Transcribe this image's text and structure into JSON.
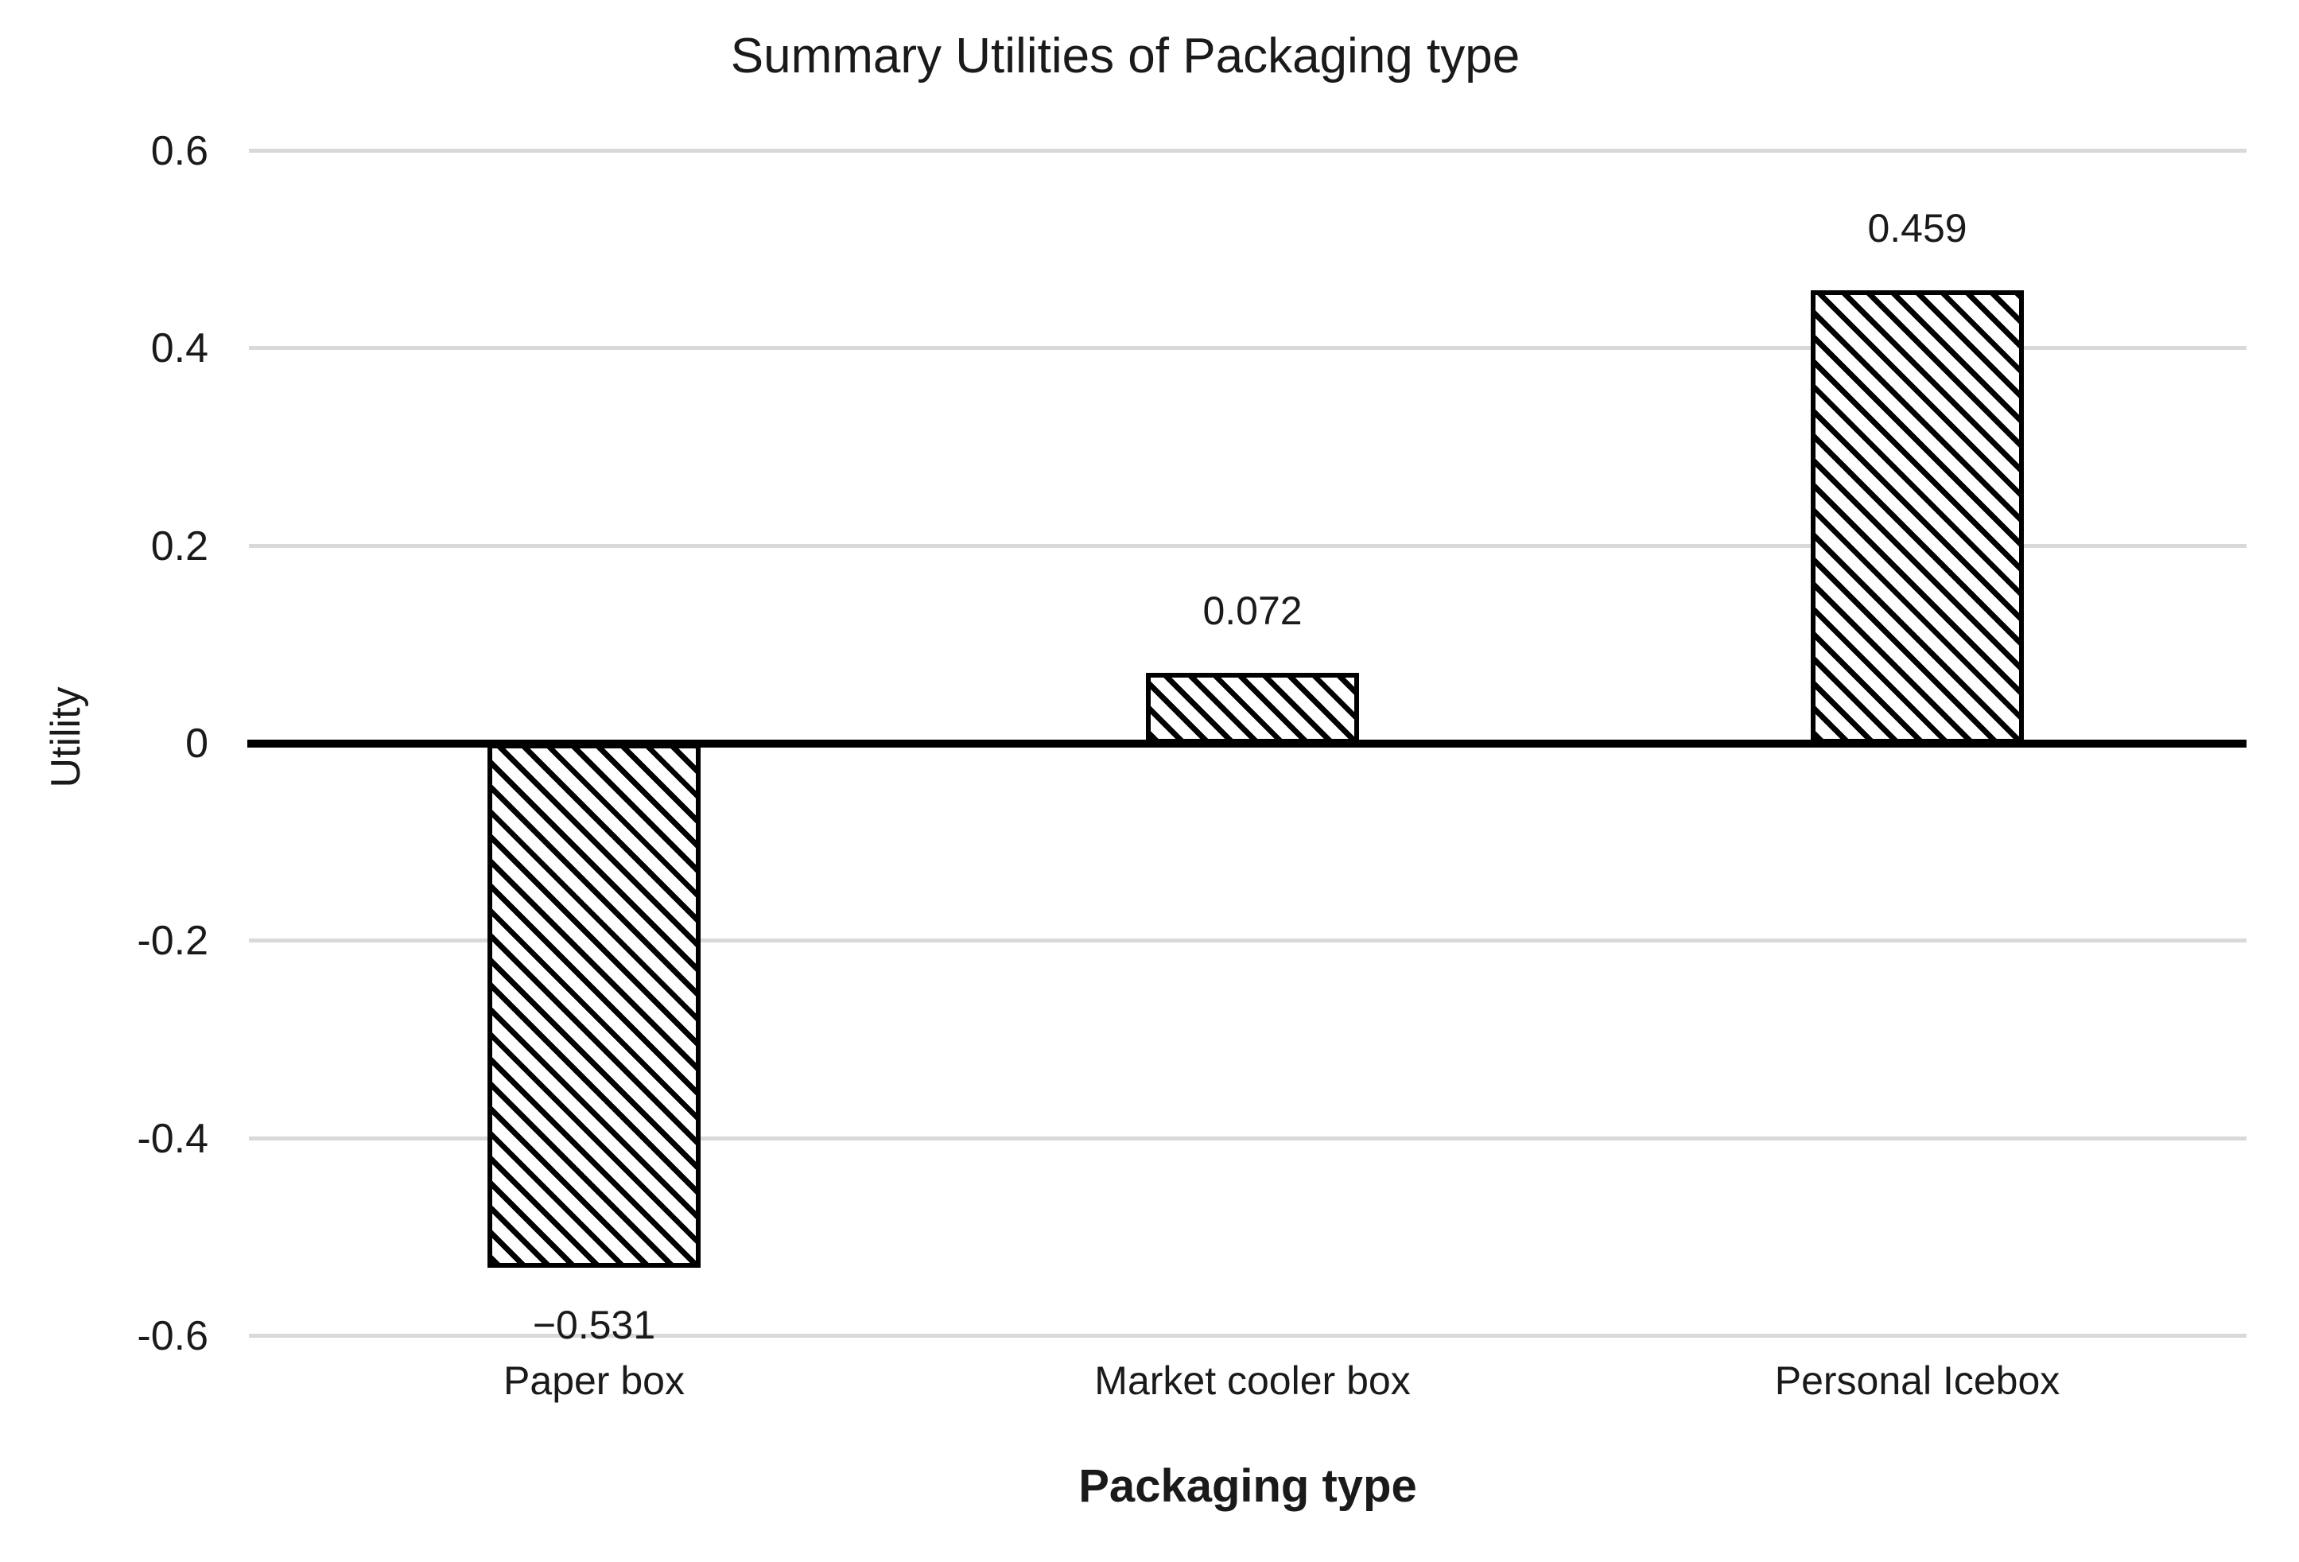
{
  "chart_data": {
    "type": "bar",
    "title": "Summary Utilities of Packaging type",
    "xlabel": "Packaging type",
    "ylabel": "Utility",
    "categories": [
      "Paper box",
      "Market cooler box",
      "Personal Icebox"
    ],
    "values": [
      -0.531,
      0.072,
      0.459
    ],
    "value_labels": [
      "−0.531",
      "0.072",
      "0.459"
    ],
    "ylim": [
      -0.6,
      0.6
    ],
    "yticks": [
      {
        "value": 0.6,
        "label": "0.6"
      },
      {
        "value": 0.4,
        "label": "0.4"
      },
      {
        "value": 0.2,
        "label": "0.2"
      },
      {
        "value": 0,
        "label": "0"
      },
      {
        "value": -0.2,
        "label": "-0.2"
      },
      {
        "value": -0.4,
        "label": "-0.4"
      },
      {
        "value": -0.6,
        "label": "-0.6"
      }
    ],
    "grid": true,
    "legend": false,
    "bar_style": {
      "fill": "#ffffff",
      "hatch": "diagonal-backslash",
      "border_color": "#000000"
    },
    "colors": {
      "gridline": "#d9d9d9",
      "zero_line": "#000000",
      "text": "#1a1a1a"
    }
  }
}
